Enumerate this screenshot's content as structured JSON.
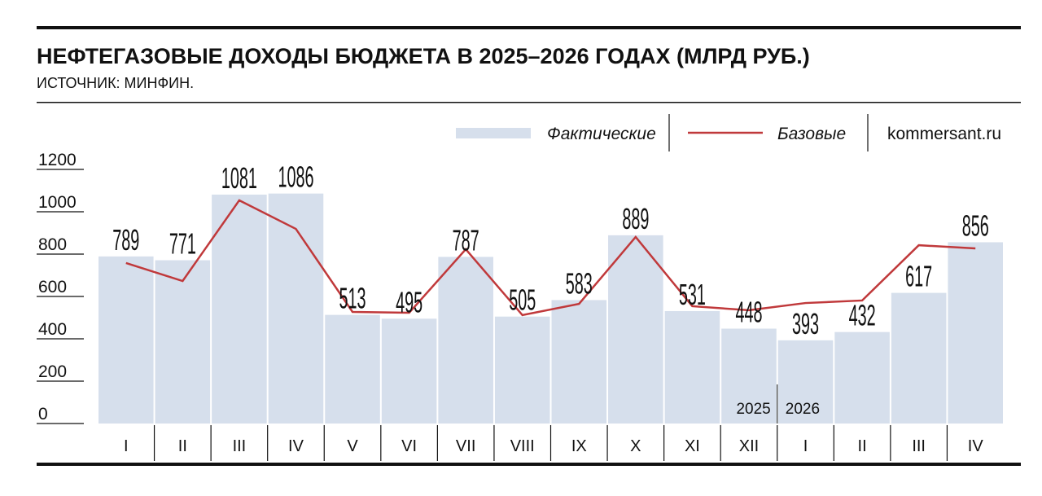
{
  "chart_data": {
    "type": "bar-line",
    "title": "НЕФТЕГАЗОВЫЕ ДОХОДЫ БЮДЖЕТА В 2025–2026 ГОДАХ (МЛРД РУБ.)",
    "subtitle": "ИСТОЧНИК: МИНФИН.",
    "source_credit": "kommersant.ru",
    "categories": [
      "I",
      "II",
      "III",
      "IV",
      "V",
      "VI",
      "VII",
      "VIII",
      "IX",
      "X",
      "XI",
      "XII",
      "I",
      "II",
      "III",
      "IV"
    ],
    "year_labels": [
      "2025",
      "2026"
    ],
    "series": [
      {
        "name": "Фактические",
        "color": "#d6dfec",
        "type": "bar",
        "values": [
          789,
          771,
          1081,
          1086,
          513,
          495,
          787,
          505,
          583,
          889,
          531,
          448,
          393,
          432,
          617,
          856
        ]
      },
      {
        "name": "Базовые",
        "color": "#c0393b",
        "type": "line",
        "values": [
          758,
          673,
          1054,
          919,
          527,
          523,
          823,
          512,
          565,
          881,
          554,
          535,
          569,
          581,
          842,
          827
        ]
      }
    ],
    "ylim": [
      0,
      1200
    ],
    "yticks": [
      0,
      200,
      400,
      600,
      800,
      1000,
      1200
    ]
  }
}
